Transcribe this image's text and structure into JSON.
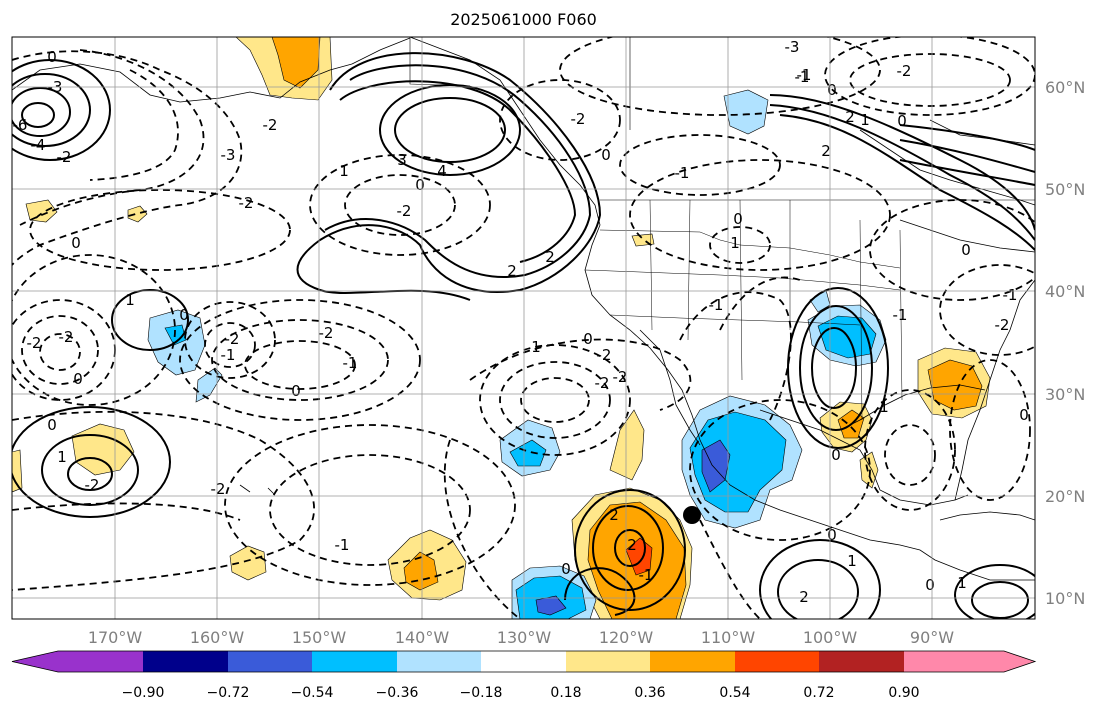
{
  "title": "2025061000 F060",
  "map": {
    "lon_labels": [
      "170°W",
      "160°W",
      "150°W",
      "140°W",
      "130°W",
      "120°W",
      "110°W",
      "100°W",
      "90°W"
    ],
    "lat_labels": [
      "60°N",
      "50°N",
      "40°N",
      "30°N",
      "20°N",
      "10°N"
    ],
    "contour_labels": [
      {
        "text": "0"
      },
      {
        "text": "-3"
      },
      {
        "text": "-6"
      },
      {
        "text": "-4"
      },
      {
        "text": "-2"
      },
      {
        "text": "-3"
      },
      {
        "text": "-2"
      },
      {
        "text": "-2"
      },
      {
        "text": "0"
      },
      {
        "text": "3"
      },
      {
        "text": "4"
      },
      {
        "text": "1"
      },
      {
        "text": "-2"
      },
      {
        "text": "0"
      },
      {
        "text": "-2"
      },
      {
        "text": "0"
      },
      {
        "text": "-1"
      },
      {
        "text": "2"
      },
      {
        "text": "1"
      },
      {
        "text": "2"
      },
      {
        "text": "-3"
      },
      {
        "text": "-1"
      },
      {
        "text": "0"
      },
      {
        "text": "-2"
      },
      {
        "text": "2"
      },
      {
        "text": "0"
      },
      {
        "text": "1"
      },
      {
        "text": "-1"
      },
      {
        "text": "0"
      },
      {
        "text": "1"
      },
      {
        "text": "2"
      },
      {
        "text": "-2"
      },
      {
        "text": "-2"
      },
      {
        "text": "-1"
      },
      {
        "text": "-2"
      },
      {
        "text": "-2"
      },
      {
        "text": "0"
      },
      {
        "text": "-1"
      },
      {
        "text": "0"
      },
      {
        "text": "0"
      },
      {
        "text": "1"
      },
      {
        "text": "-2"
      },
      {
        "text": "0"
      },
      {
        "text": "-2"
      },
      {
        "text": "-1"
      },
      {
        "text": "-2"
      },
      {
        "text": "1"
      },
      {
        "text": "-2"
      },
      {
        "text": "0"
      },
      {
        "text": "-2"
      },
      {
        "text": "-1"
      },
      {
        "text": "0"
      },
      {
        "text": "-1"
      },
      {
        "text": "2"
      },
      {
        "text": "2"
      },
      {
        "text": "1"
      },
      {
        "text": "0"
      },
      {
        "text": "-1"
      },
      {
        "text": "0"
      },
      {
        "text": "-2"
      },
      {
        "text": "0"
      },
      {
        "text": "1"
      },
      {
        "text": "2"
      },
      {
        "text": "0"
      },
      {
        "text": "1"
      },
      {
        "text": "-1"
      },
      {
        "text": "0"
      }
    ]
  },
  "colorbar": {
    "ticks": [
      "−0.90",
      "−0.72",
      "−0.54",
      "−0.36",
      "−0.18",
      "0.18",
      "0.36",
      "0.54",
      "0.72",
      "0.90"
    ],
    "colors": [
      "#9932cc",
      "#00008b",
      "#3a5bd9",
      "#00bfff",
      "#b0e2ff",
      "#ffffff",
      "#ffe78a",
      "#ffa500",
      "#ff4500",
      "#b22222",
      "#ff88aa"
    ]
  },
  "shading_colors": {
    "light_blue": "#b0e2ff",
    "blue": "#00bfff",
    "mid_blue": "#3a5bd9",
    "yellow": "#ffe78a",
    "orange": "#ffa500",
    "red_orange": "#ff4500"
  }
}
